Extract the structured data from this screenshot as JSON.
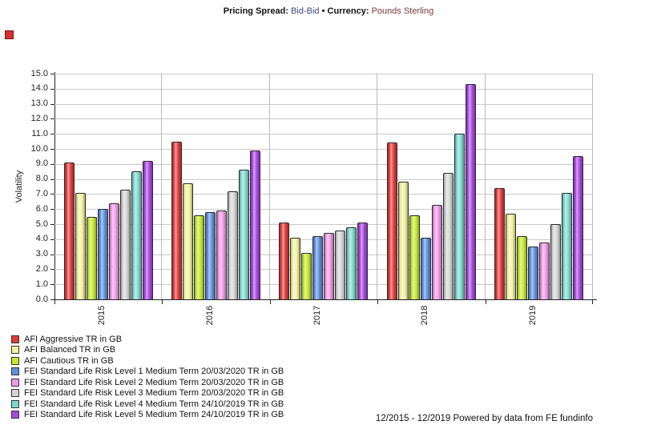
{
  "title": {
    "pricing_label": "Pricing Spread:",
    "pricing_value": "Bid-Bid",
    "bullet": "•",
    "currency_label": "Currency:",
    "currency_value": "Pounds Sterling"
  },
  "footer": "12/2015 - 12/2019 Powered by data from FE fundinfo",
  "icons": {
    "top_left_marker": "red-square"
  },
  "colors": {
    "title_pricing_value": "#3a4a7c",
    "title_currency_value": "#7c3a3a",
    "gridline": "#c9c9c9",
    "axis": "#222222",
    "marker_red": "#d62f2f"
  },
  "chart_data": {
    "type": "bar",
    "title": "",
    "xlabel": "",
    "ylabel": "Volatility",
    "ylim": [
      0,
      15
    ],
    "ytick_step": 1.0,
    "grid": true,
    "legend_position": "bottom-left",
    "categories": [
      "2015",
      "2016",
      "2017",
      "2018",
      "2019"
    ],
    "series": [
      {
        "name": "AFI Aggressive TR in GB",
        "color": "#e03c3c",
        "values": [
          9.1,
          10.5,
          5.1,
          10.4,
          7.4
        ]
      },
      {
        "name": "AFI Balanced TR in GB",
        "color": "#f2f2a0",
        "values": [
          7.1,
          7.7,
          4.1,
          7.8,
          5.7
        ]
      },
      {
        "name": "AFI Cautious TR in GB",
        "color": "#c6e832",
        "values": [
          5.5,
          5.6,
          3.1,
          5.6,
          4.2
        ]
      },
      {
        "name": "FEI Standard Life Risk Level 1 Medium Term 20/03/2020 TR in GB",
        "color": "#6090dc",
        "values": [
          6.0,
          5.8,
          4.2,
          4.1,
          3.5
        ]
      },
      {
        "name": "FEI Standard Life Risk Level 2 Medium Term 20/03/2020 TR in GB",
        "color": "#f09ae8",
        "values": [
          6.4,
          5.9,
          4.4,
          6.3,
          3.8
        ]
      },
      {
        "name": "FEI Standard Life Risk Level 3 Medium Term 20/03/2020 TR in GB",
        "color": "#d4d4d4",
        "values": [
          7.3,
          7.2,
          4.6,
          8.4,
          5.0
        ]
      },
      {
        "name": "FEI Standard Life Risk Level 4 Medium Term 24/10/2019 TR in GB",
        "color": "#80d8d0",
        "values": [
          8.5,
          8.6,
          4.8,
          11.0,
          7.1
        ]
      },
      {
        "name": "FEI Standard Life Risk Level 5 Medium Term 24/10/2019 TR in GB",
        "color": "#a848e0",
        "values": [
          9.2,
          9.9,
          5.1,
          14.3,
          9.5
        ]
      }
    ]
  }
}
